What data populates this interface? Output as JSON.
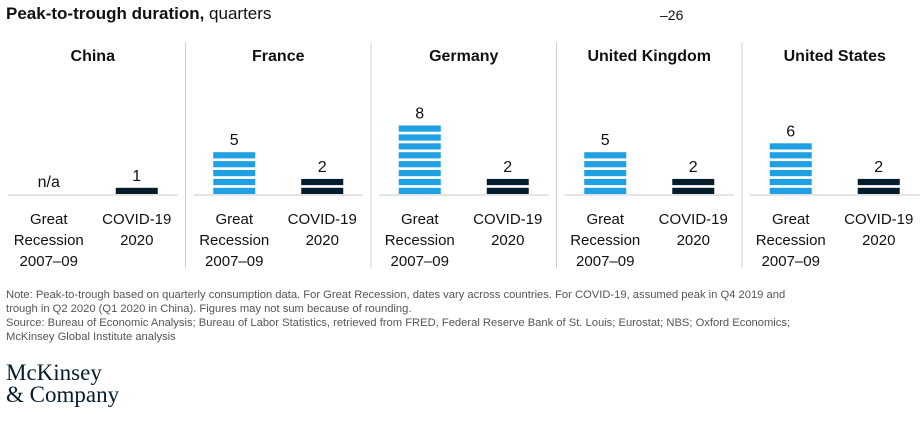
{
  "header": {
    "title_bold": "Peak-to-trough duration,",
    "title_rest": " quarters",
    "stray_label": "–26"
  },
  "chart_data": {
    "type": "bar",
    "title": "Peak-to-trough duration, quarters",
    "unit": "quarters",
    "ylim": [
      0,
      8
    ],
    "colors": {
      "Great Recession": "#1fa0e3",
      "COVID-19": "#051c2c"
    },
    "panels": [
      {
        "country": "China",
        "bars": [
          {
            "label": [
              "Great",
              "Recession",
              "2007–09"
            ],
            "series": "Great Recession",
            "value": null,
            "value_label": "n/a"
          },
          {
            "label": [
              "COVID-19",
              "2020"
            ],
            "series": "COVID-19",
            "value": 1,
            "value_label": "1"
          }
        ]
      },
      {
        "country": "France",
        "bars": [
          {
            "label": [
              "Great",
              "Recession",
              "2007–09"
            ],
            "series": "Great Recession",
            "value": 5,
            "value_label": "5"
          },
          {
            "label": [
              "COVID-19",
              "2020"
            ],
            "series": "COVID-19",
            "value": 2,
            "value_label": "2"
          }
        ]
      },
      {
        "country": "Germany",
        "bars": [
          {
            "label": [
              "Great",
              "Recession",
              "2007–09"
            ],
            "series": "Great Recession",
            "value": 8,
            "value_label": "8"
          },
          {
            "label": [
              "COVID-19",
              "2020"
            ],
            "series": "COVID-19",
            "value": 2,
            "value_label": "2"
          }
        ]
      },
      {
        "country": "United Kingdom",
        "bars": [
          {
            "label": [
              "Great",
              "Recession",
              "2007–09"
            ],
            "series": "Great Recession",
            "value": 5,
            "value_label": "5"
          },
          {
            "label": [
              "COVID-19",
              "2020"
            ],
            "series": "COVID-19",
            "value": 2,
            "value_label": "2"
          }
        ]
      },
      {
        "country": "United States",
        "bars": [
          {
            "label": [
              "Great",
              "Recession",
              "2007–09"
            ],
            "series": "Great Recession",
            "value": 6,
            "value_label": "6"
          },
          {
            "label": [
              "COVID-19",
              "2020"
            ],
            "series": "COVID-19",
            "value": 2,
            "value_label": "2"
          }
        ]
      }
    ]
  },
  "footer": {
    "note_line1": "Note: Peak-to-trough based on quarterly consumption data. For Great Recession, dates vary across countries. For COVID-19, assumed peak in Q4 2019 and",
    "note_line2": "trough in Q2 2020 (Q1 2020 in China). Figures may not sum because of rounding.",
    "source_line1": "Source: Bureau of Economic Analysis; Bureau of Labor Statistics, retrieved from FRED, Federal Reserve Bank of St. Louis; Eurostat; NBS; Oxford Economics;",
    "source_line2": "McKinsey Global Institute analysis",
    "logo_line1": "McKinsey",
    "logo_line2": "& Company"
  }
}
